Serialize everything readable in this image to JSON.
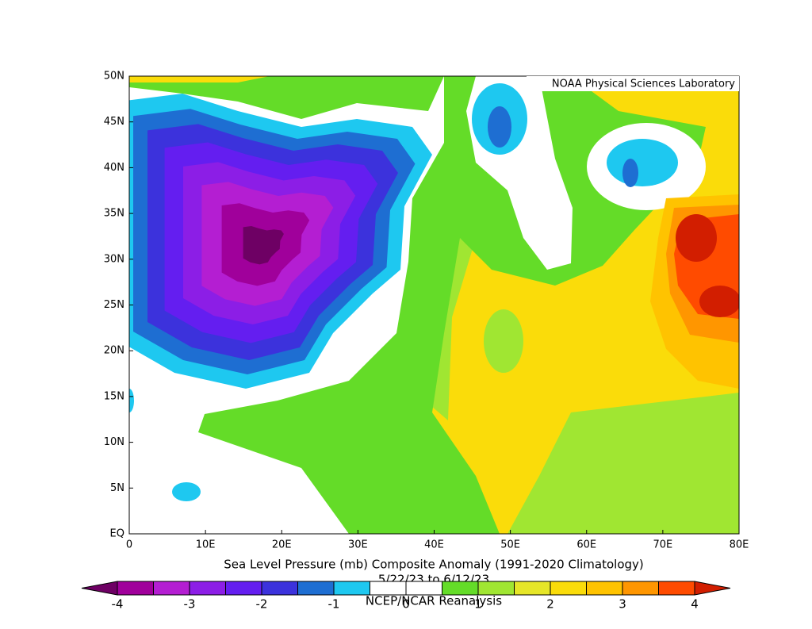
{
  "credit": "NOAA Physical Sciences Laboratory",
  "map": {
    "type": "filled-contour",
    "title": "Sea Level Pressure (mb) Composite Anomaly (1991-2020 Climatology)",
    "subtitle": "5/22/23  to 6/12/23",
    "source": "NCEP/NCAR Reanalysis",
    "xlim": [
      0,
      80
    ],
    "ylim": [
      0,
      50
    ],
    "xticks": [
      0,
      {
        "value": 10,
        "label": "10E"
      },
      {
        "value": 20,
        "label": "20E"
      },
      {
        "value": 30,
        "label": "30E"
      },
      {
        "value": 40,
        "label": "40E"
      },
      {
        "value": 50,
        "label": "50E"
      },
      {
        "value": 60,
        "label": "60E"
      },
      {
        "value": 70,
        "label": "70E"
      },
      {
        "value": 80,
        "label": "80E"
      }
    ],
    "yticks": [
      {
        "value": 0,
        "label": "EQ"
      },
      {
        "value": 5,
        "label": "5N"
      },
      {
        "value": 10,
        "label": "10N"
      },
      {
        "value": 15,
        "label": "15N"
      },
      {
        "value": 20,
        "label": "20N"
      },
      {
        "value": 25,
        "label": "25N"
      },
      {
        "value": 30,
        "label": "30N"
      },
      {
        "value": 35,
        "label": "35N"
      },
      {
        "value": 40,
        "label": "40N"
      },
      {
        "value": 45,
        "label": "45N"
      },
      {
        "value": 50,
        "label": "50N"
      }
    ]
  },
  "colorbar": {
    "levels": [
      -4,
      -3.5,
      -3,
      -2.5,
      -2,
      -1.5,
      -1,
      -0.5,
      0,
      0.5,
      1,
      1.5,
      2,
      2.5,
      3,
      3.5,
      4
    ],
    "colors": [
      "#a0009b",
      "#b41ed2",
      "#8c1ee6",
      "#641ef0",
      "#3c32dc",
      "#1e6ed2",
      "#1ec8f0",
      "#ffffff",
      "#ffffff",
      "#64dc28",
      "#a0e632",
      "#e6e628",
      "#fadc0a",
      "#ffc300",
      "#ff9600",
      "#ff4b00"
    ],
    "under_color": "#6e0064",
    "over_color": "#d21e00",
    "ticks": [
      -4,
      -3,
      -2,
      -1,
      0,
      1,
      2,
      3,
      4
    ]
  }
}
